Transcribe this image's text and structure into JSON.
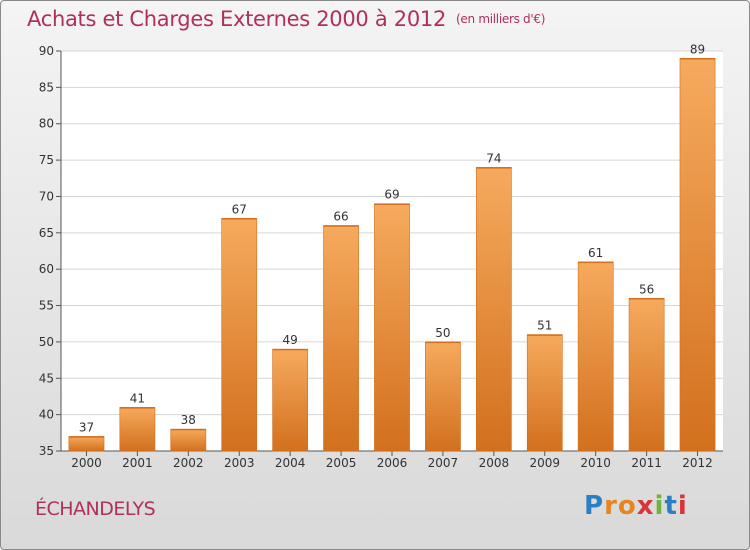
{
  "header": {
    "title": "Achats et Charges Externes 2000 à 2012",
    "unit": "(en milliers d'€)"
  },
  "footer": {
    "town": "ÉCHANDELYS",
    "logo": [
      "P",
      "r",
      "o",
      "x",
      "i",
      "t",
      "i"
    ],
    "logo_colors": [
      "#2b7fc4",
      "#e8851f",
      "#e8851f",
      "#d8353b",
      "#72b43a",
      "#2b7fc4",
      "#d8353b"
    ]
  },
  "chart_data": {
    "type": "bar",
    "title": "Achats et Charges Externes 2000 à 2012",
    "categories": [
      "2000",
      "2001",
      "2002",
      "2003",
      "2004",
      "2005",
      "2006",
      "2007",
      "2008",
      "2009",
      "2010",
      "2011",
      "2012"
    ],
    "values": [
      37,
      41,
      38,
      67,
      49,
      66,
      69,
      50,
      74,
      51,
      61,
      56,
      89
    ],
    "ylim": [
      35,
      90
    ],
    "yticks": [
      35,
      40,
      45,
      50,
      55,
      60,
      65,
      70,
      75,
      80,
      85,
      90
    ],
    "grid": true,
    "bar_color": "#ee8a35",
    "bar_color_light": "#f6aa5e",
    "bar_color_dark": "#d2701d"
  }
}
